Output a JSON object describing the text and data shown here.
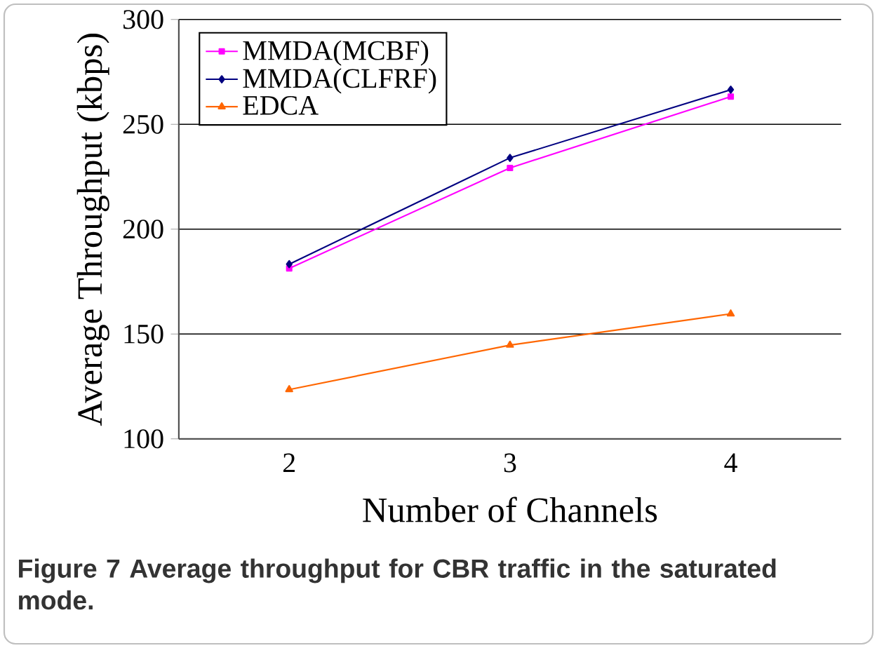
{
  "chart_data": {
    "type": "line",
    "xlabel": "Number of Channels",
    "ylabel": "Average Throughput (kbps)",
    "categories": [
      "2",
      "3",
      "4"
    ],
    "series": [
      {
        "name": "MMDA(MCBF)",
        "color": "#ff00ff",
        "marker": "square",
        "values": [
          181.3,
          229.2,
          263.2
        ]
      },
      {
        "name": "MMDA(CLFRF)",
        "color": "#000080",
        "marker": "diamond",
        "values": [
          183.3,
          234,
          266.5
        ]
      },
      {
        "name": "EDCA",
        "color": "#ff6600",
        "marker": "triangle",
        "values": [
          123.5,
          144.7,
          159.6
        ]
      }
    ],
    "ylim": [
      100,
      300
    ],
    "yticks": [
      100,
      150,
      200,
      250,
      300
    ],
    "grid": "y",
    "legend": "top left",
    "line_style": "solid",
    "annotations": [
      "Figure 7 Average throughput for CBR traffic in the saturated mode."
    ]
  }
}
